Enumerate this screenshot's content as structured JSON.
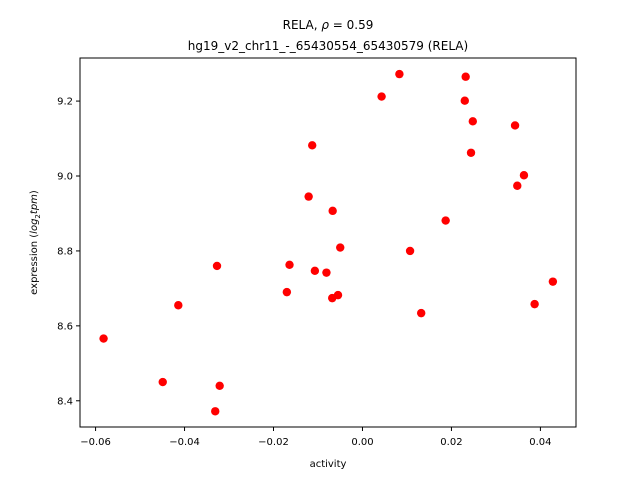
{
  "chart_data": {
    "type": "scatter",
    "title_prefix": "RELA, ",
    "title_rho_symbol": "ρ",
    "title_rho_value": " = 0.59",
    "subtitle": "hg19_v2_chr11_-_65430554_65430579 (RELA)",
    "xlabel": "activity",
    "ylabel_prefix": "expression (",
    "ylabel_math": "log",
    "ylabel_sub": "2",
    "ylabel_math2": "tpm",
    "ylabel_suffix": ")",
    "xlim": [
      -0.0635,
      0.048
    ],
    "ylim": [
      8.33,
      9.315
    ],
    "xticks": [
      -0.06,
      -0.04,
      -0.02,
      0.0,
      0.02,
      0.04
    ],
    "xtick_labels": [
      "−0.06",
      "−0.04",
      "−0.02",
      "0.00",
      "0.02",
      "0.04"
    ],
    "yticks": [
      8.4,
      8.6,
      8.8,
      9.0,
      9.2
    ],
    "ytick_labels": [
      "8.4",
      "8.6",
      "8.8",
      "9.0",
      "9.2"
    ],
    "marker_color": "#ff0000",
    "grid": false,
    "points": [
      {
        "x": -0.0582,
        "y": 8.566
      },
      {
        "x": -0.0449,
        "y": 8.45
      },
      {
        "x": -0.0414,
        "y": 8.655
      },
      {
        "x": -0.0331,
        "y": 8.372
      },
      {
        "x": -0.0327,
        "y": 8.76
      },
      {
        "x": -0.0321,
        "y": 8.44
      },
      {
        "x": -0.017,
        "y": 8.69
      },
      {
        "x": -0.0164,
        "y": 8.763
      },
      {
        "x": -0.0121,
        "y": 8.945
      },
      {
        "x": -0.0113,
        "y": 9.082
      },
      {
        "x": -0.0107,
        "y": 8.747
      },
      {
        "x": -0.0081,
        "y": 8.742
      },
      {
        "x": -0.0068,
        "y": 8.674
      },
      {
        "x": -0.0067,
        "y": 8.907
      },
      {
        "x": -0.0055,
        "y": 8.682
      },
      {
        "x": -0.005,
        "y": 8.809
      },
      {
        "x": 0.0043,
        "y": 9.212
      },
      {
        "x": 0.0083,
        "y": 9.272
      },
      {
        "x": 0.0107,
        "y": 8.8
      },
      {
        "x": 0.0132,
        "y": 8.634
      },
      {
        "x": 0.0187,
        "y": 8.881
      },
      {
        "x": 0.023,
        "y": 9.201
      },
      {
        "x": 0.0232,
        "y": 9.265
      },
      {
        "x": 0.0244,
        "y": 9.062
      },
      {
        "x": 0.0248,
        "y": 9.146
      },
      {
        "x": 0.0343,
        "y": 9.135
      },
      {
        "x": 0.0348,
        "y": 8.974
      },
      {
        "x": 0.0363,
        "y": 9.002
      },
      {
        "x": 0.0387,
        "y": 8.658
      },
      {
        "x": 0.0428,
        "y": 8.718
      }
    ]
  }
}
